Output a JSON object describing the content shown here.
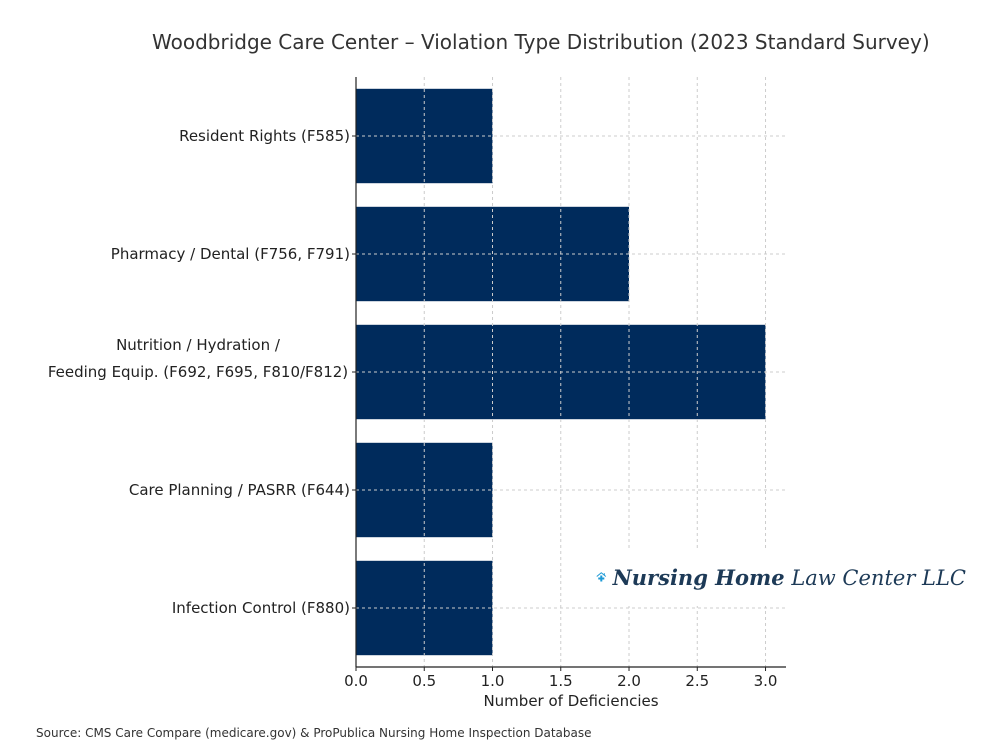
{
  "chart_data": {
    "type": "bar",
    "orientation": "horizontal",
    "title": "Woodbridge Care Center – Violation Type Distribution (2023 Standard Survey)",
    "xlabel": "Number of Deficiencies",
    "ylabel": "",
    "categories": [
      "Resident Rights (F585)",
      "Pharmacy / Dental (F756, F791)",
      "Nutrition / Hydration /\nFeeding Equip. (F692, F695, F810/F812)",
      "Care Planning / PASRR (F644)",
      "Infection Control (F880)"
    ],
    "values": [
      1,
      2,
      3,
      1,
      1
    ],
    "xlim": [
      0,
      3.15
    ],
    "xticks": [
      "0.0",
      "0.5",
      "1.0",
      "1.5",
      "2.0",
      "2.5",
      "3.0"
    ],
    "grid": true,
    "bar_color": "#002b5c"
  },
  "source": "Source: CMS Care Compare (medicare.gov) & ProPublica Nursing Home Inspection Database",
  "logo": {
    "text_bold": "Nursing Home",
    "text_regular": "Law Center LLC",
    "icon": "house-medical-cross-icon",
    "color": "#1e9ad6"
  }
}
